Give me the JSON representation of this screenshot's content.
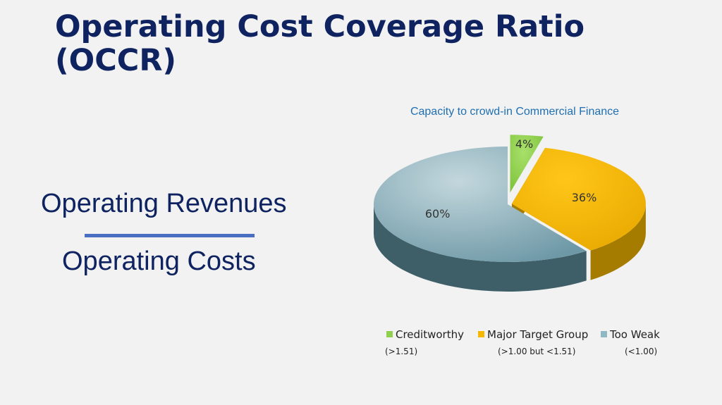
{
  "slide": {
    "title": "Operating Cost Coverage Ratio (OCCR)",
    "numerator": "Operating Revenues",
    "denominator": "Operating Costs"
  },
  "chart_data": {
    "type": "pie",
    "title": "Capacity to crowd-in Commercial Finance",
    "three_d": true,
    "categories": [
      "Creditworthy",
      "Major Target Group",
      "Too Weak"
    ],
    "values": [
      4,
      36,
      60
    ],
    "data_labels": [
      "4%",
      "36%",
      "60%"
    ],
    "ranges": [
      "(>1.51)",
      "(>1.00 but <1.51)",
      "(<1.00)"
    ],
    "colors": [
      "#8fd14f",
      "#f5b800",
      "#8fb8c4"
    ],
    "legend_position": "bottom"
  }
}
